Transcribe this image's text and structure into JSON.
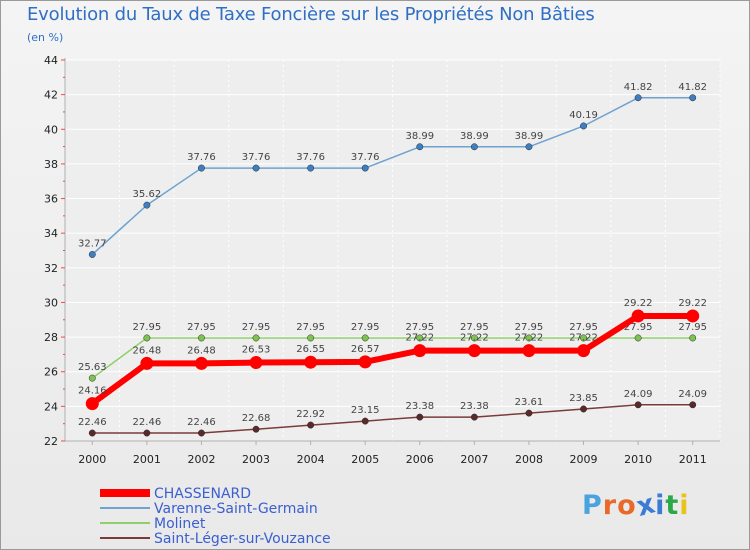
{
  "header": {
    "title": "Evolution du Taux de Taxe Foncière sur les Propriétés Non Bâties",
    "unit": "(en %)"
  },
  "colors": {
    "background": "#f0f0f0",
    "title": "#2f6fc4",
    "grid": "#ffffff",
    "axis": "#b0b0b0"
  },
  "logo": {
    "text": "Proxiti",
    "letter_colors": [
      "#4aa3df",
      "#e8692a",
      "#e8692a",
      "#3a7bd5",
      "#3a7bd5",
      "#2aa84a",
      "#e9c21a"
    ]
  },
  "chart_data": {
    "type": "line",
    "title": "Evolution du Taux de Taxe Foncière sur les Propriétés Non Bâties",
    "ylabel": "(en %)",
    "xlabel": "",
    "categories": [
      "2000",
      "2001",
      "2002",
      "2003",
      "2004",
      "2005",
      "2006",
      "2007",
      "2008",
      "2009",
      "2010",
      "2011"
    ],
    "ylim": [
      22,
      44
    ],
    "yticks": [
      22,
      24,
      26,
      28,
      30,
      32,
      34,
      36,
      38,
      40,
      42,
      44
    ],
    "grid": true,
    "legend_position": "bottom-left",
    "series": [
      {
        "name": "Varenne-Saint-Germain",
        "color": "#6fa2d0",
        "marker": "#3d7fc1",
        "width": 1.5,
        "marker_r": 3.2,
        "values": [
          32.77,
          35.62,
          37.76,
          37.76,
          37.76,
          37.76,
          38.99,
          38.99,
          38.99,
          40.19,
          41.82,
          41.82
        ],
        "labels": [
          "32.77",
          "35.62",
          "37.76",
          "37.76",
          "37.76",
          "37.76",
          "38.99",
          "38.99",
          "38.99",
          "40.19",
          "41.82",
          "41.82"
        ],
        "label_position": "above"
      },
      {
        "name": "Molinet",
        "color": "#8fd06a",
        "marker": "#7cc44f",
        "width": 1.5,
        "marker_r": 3.2,
        "values": [
          25.63,
          27.95,
          27.95,
          27.95,
          27.95,
          27.95,
          27.95,
          27.95,
          27.95,
          27.95,
          27.95,
          27.95
        ],
        "labels": [
          "25.63",
          "27.95",
          "27.95",
          "27.95",
          "27.95",
          "27.95",
          "27.95",
          "27.95",
          "27.95",
          "27.95",
          "27.95",
          "27.95"
        ],
        "label_position": "above"
      },
      {
        "name": "CHASSENARD",
        "color": "#ff0000",
        "marker": "#ff0000",
        "width": 6,
        "marker_r": 6.5,
        "values": [
          24.16,
          26.48,
          26.48,
          26.53,
          26.55,
          26.57,
          27.22,
          27.22,
          27.22,
          27.22,
          29.22,
          29.22
        ],
        "labels": [
          "24.16",
          "26.48",
          "26.48",
          "26.53",
          "26.55",
          "26.57",
          "27.22",
          "27.22",
          "27.22",
          "27.22",
          "29.22",
          "29.22"
        ],
        "label_position": "above"
      },
      {
        "name": "Saint-Léger-sur-Vouzance",
        "color": "#7a3b3b",
        "marker": "#5a2a2a",
        "width": 1.5,
        "marker_r": 3.2,
        "values": [
          22.46,
          22.46,
          22.46,
          22.68,
          22.92,
          23.15,
          23.38,
          23.38,
          23.61,
          23.85,
          24.09,
          24.09
        ],
        "labels": [
          "22.46",
          "22.46",
          "22.46",
          "22.68",
          "22.92",
          "23.15",
          "23.38",
          "23.38",
          "23.61",
          "23.85",
          "24.09",
          "24.09"
        ],
        "label_position": "above"
      }
    ],
    "legend": [
      {
        "name": "CHASSENARD",
        "color": "#ff0000",
        "text_color": "#3a5fd0",
        "thick": true
      },
      {
        "name": "Varenne-Saint-Germain",
        "color": "#6fa2d0",
        "text_color": "#3a5fd0",
        "thick": false
      },
      {
        "name": "Molinet",
        "color": "#8fd06a",
        "text_color": "#3a5fd0",
        "thick": false
      },
      {
        "name": "Saint-Léger-sur-Vouzance",
        "color": "#7a3b3b",
        "text_color": "#3a5fd0",
        "thick": false
      }
    ]
  }
}
